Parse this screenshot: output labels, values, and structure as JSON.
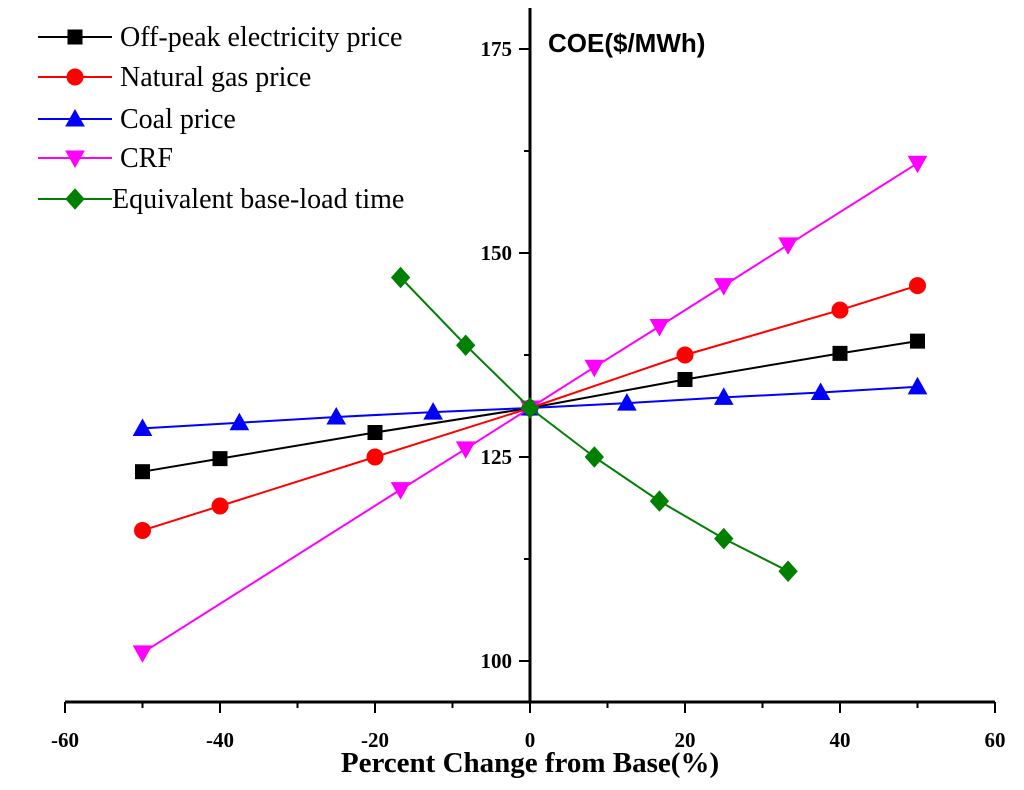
{
  "chart_data": {
    "type": "line",
    "title": "COE($/MWh)",
    "xlabel": "Percent Change from Base(%)",
    "ylabel": "",
    "xlim": [
      -60,
      60
    ],
    "ylim": [
      95,
      180
    ],
    "xticks": [
      -60,
      -40,
      -20,
      0,
      20,
      40,
      60
    ],
    "yticks": [
      100,
      125,
      150,
      175
    ],
    "grid": false,
    "legend_position": "top-left",
    "series": [
      {
        "name": "Off-peak electricity price",
        "color": "#000000",
        "marker": "square",
        "x": [
          -50,
          -40,
          -20,
          0,
          20,
          40,
          50
        ],
        "y": [
          123.2,
          124.8,
          128.0,
          131.0,
          134.5,
          137.7,
          139.2
        ]
      },
      {
        "name": "Natural gas price",
        "color": "#ff0000",
        "marker": "circle",
        "x": [
          -50,
          -40,
          -20,
          0,
          20,
          40,
          50
        ],
        "y": [
          116.0,
          119.0,
          125.0,
          131.0,
          137.5,
          143.0,
          146.0
        ]
      },
      {
        "name": "Coal price",
        "color": "#0000ff",
        "marker": "triangle-up",
        "x": [
          -50,
          -37.5,
          -25,
          -12.5,
          0,
          12.5,
          25,
          37.5,
          50
        ],
        "y": [
          128.5,
          129.2,
          129.9,
          130.5,
          131.0,
          131.6,
          132.3,
          132.9,
          133.6
        ]
      },
      {
        "name": "CRF",
        "color": "#ff00ff",
        "marker": "triangle-down",
        "x": [
          -50,
          -16.7,
          -8.3,
          0,
          8.3,
          16.7,
          25,
          33.3,
          50
        ],
        "y": [
          101.0,
          121.0,
          126.0,
          131.0,
          136.0,
          141.0,
          146.0,
          151.0,
          161.0
        ]
      },
      {
        "name": "Equivalent base-load time",
        "color": "#008000",
        "marker": "diamond",
        "x": [
          -16.7,
          -8.3,
          0,
          8.3,
          16.7,
          25,
          33.3
        ],
        "y": [
          147.0,
          138.7,
          131.0,
          125.0,
          119.6,
          115.0,
          111.0
        ]
      }
    ]
  }
}
